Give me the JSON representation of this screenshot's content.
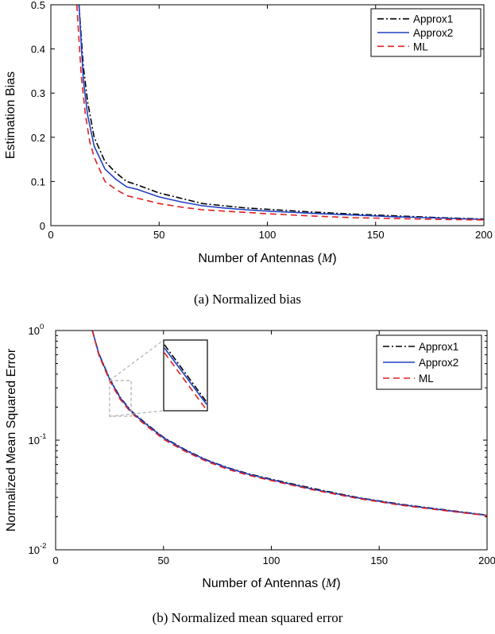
{
  "chart_data": [
    {
      "type": "line",
      "caption": "(a) Normalized bias",
      "xlabel": "Number of Antennas (",
      "xlabel_var": "M",
      "xlabel_end": ")",
      "ylabel": "Estimation Bias",
      "xlim": [
        0,
        200
      ],
      "ylim": [
        0,
        0.5
      ],
      "yscale": "linear",
      "xticks": [
        0,
        50,
        100,
        150,
        200
      ],
      "xtick_labels": [
        "0",
        "50",
        "100",
        "150",
        "200"
      ],
      "yticks": [
        0,
        0.1,
        0.2,
        0.3,
        0.4,
        0.5
      ],
      "ytick_labels": [
        "0",
        "0.1",
        "0.2",
        "0.3",
        "0.4",
        "0.5"
      ],
      "legend_position": "top-right",
      "series": [
        {
          "name": "Approx1",
          "color": "#000000",
          "dash": "dashdot",
          "x": [
            13,
            15,
            17,
            20,
            25,
            30,
            35,
            40,
            50,
            60,
            70,
            80,
            90,
            100,
            120,
            140,
            160,
            180,
            200
          ],
          "y": [
            0.5,
            0.36,
            0.28,
            0.2,
            0.145,
            0.12,
            0.1,
            0.092,
            0.074,
            0.062,
            0.05,
            0.045,
            0.04,
            0.037,
            0.031,
            0.026,
            0.022,
            0.018,
            0.015
          ]
        },
        {
          "name": "Approx2",
          "color": "#2040c0",
          "dash": "solid",
          "x": [
            13,
            15,
            17,
            20,
            25,
            30,
            35,
            40,
            50,
            60,
            70,
            80,
            90,
            100,
            120,
            140,
            160,
            180,
            200
          ],
          "y": [
            0.5,
            0.33,
            0.25,
            0.18,
            0.128,
            0.105,
            0.088,
            0.082,
            0.065,
            0.054,
            0.045,
            0.04,
            0.036,
            0.033,
            0.028,
            0.024,
            0.02,
            0.017,
            0.014
          ]
        },
        {
          "name": "ML",
          "color": "#e02020",
          "dash": "dashed",
          "x": [
            12,
            14,
            16,
            18,
            20,
            25,
            30,
            35,
            40,
            50,
            60,
            70,
            80,
            90,
            100,
            120,
            140,
            160,
            180,
            200
          ],
          "y": [
            0.5,
            0.34,
            0.25,
            0.19,
            0.155,
            0.1,
            0.082,
            0.068,
            0.062,
            0.05,
            0.042,
            0.036,
            0.033,
            0.03,
            0.027,
            0.022,
            0.018,
            0.016,
            0.014,
            0.013
          ]
        }
      ]
    },
    {
      "type": "line",
      "caption": "(b) Normalized mean squared error",
      "xlabel": "Number of Antennas (",
      "xlabel_var": "M",
      "xlabel_end": ")",
      "ylabel": "Normalized Mean Squared Error",
      "xlim": [
        0,
        200
      ],
      "ylim": [
        0.01,
        1
      ],
      "yscale": "log",
      "xticks": [
        0,
        50,
        100,
        150,
        200
      ],
      "xtick_labels": [
        "0",
        "50",
        "100",
        "150",
        "200"
      ],
      "yticks": [
        0.01,
        0.1,
        1
      ],
      "ytick_labels": [
        [
          "10",
          "-2"
        ],
        [
          "10",
          "-1"
        ],
        [
          "10",
          "0"
        ]
      ],
      "legend_position": "top-right",
      "inset_zoom": true,
      "series": [
        {
          "name": "Approx1",
          "color": "#000000",
          "dash": "dashdot",
          "x": [
            17,
            20,
            25,
            30,
            35,
            40,
            50,
            60,
            70,
            80,
            90,
            100,
            120,
            140,
            160,
            180,
            200
          ],
          "y": [
            1.0,
            0.62,
            0.365,
            0.245,
            0.185,
            0.152,
            0.106,
            0.082,
            0.066,
            0.056,
            0.049,
            0.044,
            0.036,
            0.03,
            0.026,
            0.0232,
            0.0207
          ]
        },
        {
          "name": "Approx2",
          "color": "#2040c0",
          "dash": "solid",
          "x": [
            17,
            20,
            25,
            30,
            35,
            40,
            50,
            60,
            70,
            80,
            90,
            100,
            120,
            140,
            160,
            180,
            200
          ],
          "y": [
            1.0,
            0.615,
            0.36,
            0.242,
            0.183,
            0.15,
            0.105,
            0.081,
            0.0655,
            0.0555,
            0.0485,
            0.0435,
            0.0355,
            0.0298,
            0.0258,
            0.023,
            0.0206
          ]
        },
        {
          "name": "ML",
          "color": "#e02020",
          "dash": "dashed",
          "x": [
            17,
            20,
            25,
            30,
            35,
            40,
            50,
            60,
            70,
            80,
            90,
            100,
            120,
            140,
            160,
            180,
            200
          ],
          "y": [
            1.0,
            0.6,
            0.35,
            0.235,
            0.178,
            0.146,
            0.102,
            0.079,
            0.064,
            0.054,
            0.0475,
            0.0428,
            0.035,
            0.0294,
            0.0255,
            0.0228,
            0.0205
          ]
        }
      ]
    }
  ]
}
